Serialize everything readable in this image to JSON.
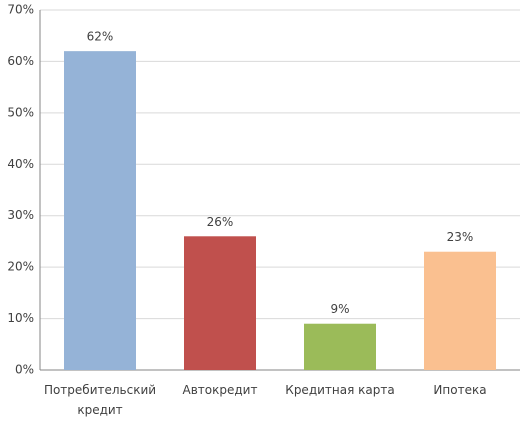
{
  "chart_data": {
    "type": "bar",
    "categories": [
      "Потребительский кредит",
      "Автокредит",
      "Кредитная карта",
      "Ипотека"
    ],
    "values": [
      62,
      26,
      9,
      23
    ],
    "value_labels": [
      "62%",
      "26%",
      "9%",
      "23%"
    ],
    "colors": [
      "#95b3d7",
      "#c0504d",
      "#9bbb59",
      "#fac090"
    ],
    "ylim": [
      0,
      70
    ],
    "yticks": [
      {
        "value": 0,
        "label": "0%"
      },
      {
        "value": 10,
        "label": "10%"
      },
      {
        "value": 20,
        "label": "20%"
      },
      {
        "value": 30,
        "label": "30%"
      },
      {
        "value": 40,
        "label": "40%"
      },
      {
        "value": 50,
        "label": "50%"
      },
      {
        "value": 60,
        "label": "60%"
      },
      {
        "value": 70,
        "label": "70%"
      }
    ],
    "grid": true
  }
}
